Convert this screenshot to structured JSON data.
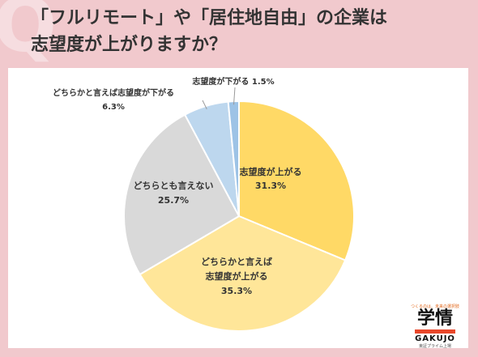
{
  "header": {
    "q_mark": "Q",
    "title_line1": "「フルリモート」や「居住地自由」の企業は",
    "title_line2": "志望度が上がりますか？"
  },
  "chart_data": {
    "type": "pie",
    "start_angle_deg": 0,
    "direction": "clockwise",
    "slices": [
      {
        "label": "志望度が上がる",
        "value": 31.3,
        "value_text": "31.3%",
        "color": "#ffd966"
      },
      {
        "label": "どちらかと言えば志望度が上がる",
        "value": 35.3,
        "value_text": "35.3%",
        "color": "#ffe699"
      },
      {
        "label": "どちらとも言えない",
        "value": 25.7,
        "value_text": "25.7%",
        "color": "#d9d9d9"
      },
      {
        "label": "どちらかと言えば志望度が下がる",
        "value": 6.3,
        "value_text": "6.3%",
        "color": "#bdd7ee"
      },
      {
        "label": "志望度が下がる",
        "value": 1.5,
        "value_text": "1.5%",
        "color": "#9dc3e6"
      }
    ]
  },
  "labels": {
    "s0": {
      "lines": [
        "志望度が上がる",
        "31.3%"
      ]
    },
    "s1": {
      "lines": [
        "どちらかと言えば",
        "志望度が上がる",
        "35.3%"
      ]
    },
    "s2": {
      "lines": [
        "どちらとも言えない",
        "25.7%"
      ]
    },
    "s3": {
      "lines": [
        "どちらかと言えば志望度が下がる",
        "6.3%"
      ]
    },
    "s4": {
      "lines": [
        "志望度が下がる 1.5%"
      ]
    }
  },
  "logo": {
    "tagline": "つくるのは、未来の選択肢",
    "kanji": "学情",
    "english": "GAKUJO",
    "sub": "東証プライム上場",
    "accent": "#e8472a"
  }
}
